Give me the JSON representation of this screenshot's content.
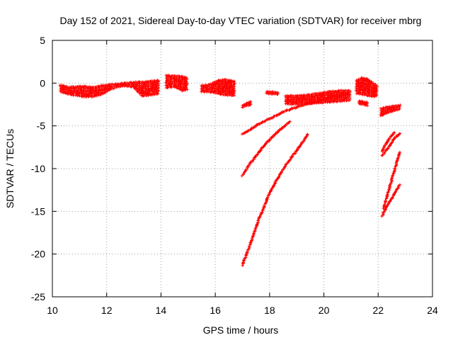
{
  "chart_data": {
    "type": "scatter",
    "title": "Day 152 of 2021, Sidereal Day-to-day VTEC variation (SDTVAR) for receiver mbrg",
    "xlabel": "GPS time / hours",
    "ylabel": "SDTVAR / TECUs",
    "xlim": [
      10,
      24
    ],
    "ylim": [
      -25,
      5
    ],
    "xticks": [
      "10",
      "12",
      "14",
      "16",
      "18",
      "20",
      "22",
      "24"
    ],
    "yticks": [
      "5",
      "0",
      "-5",
      "-10",
      "-15",
      "-20",
      "-25"
    ],
    "grid": true,
    "marker": "plus",
    "color": "#ff0000",
    "series": [
      {
        "band": [
          [
            10.3,
            -0.2,
            -1.0
          ],
          [
            10.6,
            -0.5,
            -1.3
          ],
          [
            10.9,
            -0.4,
            -1.4
          ],
          [
            11.2,
            -0.4,
            -1.6
          ],
          [
            11.5,
            -0.5,
            -1.6
          ],
          [
            11.8,
            -0.3,
            -1.3
          ],
          [
            12.1,
            -0.2,
            -0.8
          ],
          [
            12.4,
            -0.1,
            -0.4
          ],
          [
            12.7,
            0.0,
            -0.3
          ],
          [
            13.0,
            0.1,
            -0.5
          ],
          [
            13.3,
            0.1,
            -1.5
          ],
          [
            13.6,
            0.2,
            -1.4
          ],
          [
            13.9,
            0.3,
            -1.2
          ]
        ]
      },
      {
        "band": [
          [
            14.2,
            0.9,
            -0.5
          ],
          [
            14.5,
            0.8,
            -0.4
          ],
          [
            14.8,
            0.8,
            -0.9
          ],
          [
            14.95,
            0.6,
            -0.7
          ]
        ]
      },
      {
        "band": [
          [
            15.5,
            -0.3,
            -1.0
          ],
          [
            15.8,
            -0.2,
            -1.0
          ],
          [
            16.1,
            0.3,
            -1.2
          ],
          [
            16.4,
            0.4,
            -1.4
          ],
          [
            16.7,
            0.2,
            -1.4
          ]
        ]
      },
      {
        "band": [
          [
            17.0,
            -2.6,
            -2.8
          ],
          [
            17.2,
            -2.3,
            -2.6
          ],
          [
            17.3,
            -2.2,
            -2.5
          ]
        ]
      },
      {
        "band": [
          [
            17.9,
            -1.0,
            -1.2
          ],
          [
            18.3,
            -1.1,
            -1.3
          ]
        ]
      },
      {
        "band": [
          [
            18.6,
            -1.5,
            -2.4
          ],
          [
            19.0,
            -1.5,
            -2.5
          ],
          [
            19.4,
            -1.4,
            -2.4
          ],
          [
            19.8,
            -1.2,
            -2.3
          ],
          [
            20.2,
            -1.0,
            -2.2
          ],
          [
            20.6,
            -0.9,
            -2.1
          ],
          [
            20.95,
            -0.9,
            -2.0
          ]
        ]
      },
      {
        "band": [
          [
            21.2,
            0.3,
            -1.2
          ],
          [
            21.4,
            0.6,
            -1.3
          ],
          [
            21.6,
            0.5,
            -1.4
          ],
          [
            21.8,
            0.0,
            -1.6
          ],
          [
            21.95,
            -0.3,
            -1.4
          ]
        ]
      },
      {
        "band": [
          [
            21.3,
            -2.1,
            -2.4
          ],
          [
            21.6,
            -2.3,
            -2.6
          ]
        ]
      },
      {
        "band": [
          [
            22.1,
            -3.0,
            -3.8
          ],
          [
            22.4,
            -2.8,
            -3.4
          ],
          [
            22.8,
            -2.6,
            -3.0
          ]
        ]
      },
      {
        "points": [
          [
            17.0,
            -6.0
          ],
          [
            17.3,
            -5.4
          ],
          [
            17.6,
            -4.8
          ],
          [
            17.9,
            -4.3
          ],
          [
            18.2,
            -3.9
          ],
          [
            18.5,
            -3.4
          ],
          [
            18.8,
            -3.0
          ],
          [
            19.1,
            -2.7
          ],
          [
            19.4,
            -2.4
          ],
          [
            19.7,
            -2.2
          ],
          [
            20.0,
            -1.9
          ],
          [
            20.3,
            -1.6
          ],
          [
            20.6,
            -1.4
          ],
          [
            20.9,
            -1.2
          ]
        ]
      },
      {
        "points": [
          [
            17.0,
            -10.8
          ],
          [
            17.2,
            -9.8
          ],
          [
            17.4,
            -8.9
          ],
          [
            17.6,
            -8.1
          ],
          [
            17.8,
            -7.3
          ],
          [
            18.0,
            -6.6
          ],
          [
            18.2,
            -6.0
          ],
          [
            18.4,
            -5.4
          ],
          [
            18.6,
            -4.9
          ],
          [
            18.75,
            -4.5
          ]
        ]
      },
      {
        "points": [
          [
            17.0,
            -21.3
          ],
          [
            17.2,
            -19.6
          ],
          [
            17.4,
            -17.8
          ],
          [
            17.6,
            -16.0
          ],
          [
            17.8,
            -14.4
          ],
          [
            18.0,
            -12.9
          ],
          [
            18.2,
            -11.7
          ],
          [
            18.4,
            -10.6
          ],
          [
            18.6,
            -9.6
          ],
          [
            18.8,
            -8.7
          ],
          [
            19.0,
            -7.9
          ],
          [
            19.2,
            -7.0
          ],
          [
            19.4,
            -6.0
          ]
        ]
      },
      {
        "points": [
          [
            22.15,
            -8.5
          ],
          [
            22.3,
            -7.8
          ],
          [
            22.45,
            -7.2
          ],
          [
            22.6,
            -6.5
          ],
          [
            22.8,
            -5.9
          ]
        ]
      },
      {
        "points": [
          [
            22.15,
            -8.0
          ],
          [
            22.3,
            -7.0
          ],
          [
            22.45,
            -6.3
          ],
          [
            22.6,
            -5.8
          ]
        ]
      },
      {
        "points": [
          [
            22.15,
            -15.5
          ],
          [
            22.3,
            -14.5
          ],
          [
            22.45,
            -13.7
          ],
          [
            22.6,
            -12.9
          ],
          [
            22.8,
            -11.9
          ]
        ]
      },
      {
        "points": [
          [
            22.2,
            -14.6
          ],
          [
            22.35,
            -13.0
          ],
          [
            22.5,
            -11.3
          ],
          [
            22.65,
            -9.7
          ],
          [
            22.8,
            -8.1
          ]
        ]
      }
    ]
  }
}
